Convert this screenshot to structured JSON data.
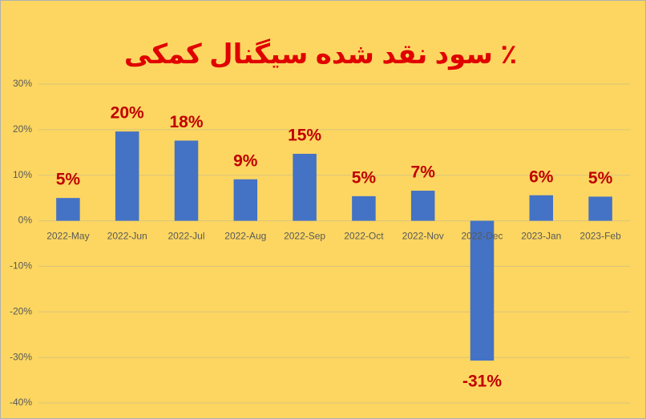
{
  "chart_data": {
    "type": "bar",
    "title": "٪ سود نقد شده سیگنال کمکی",
    "categories": [
      "2022-May",
      "2022-Jun",
      "2022-Jul",
      "2022-Aug",
      "2022-Sep",
      "2022-Oct",
      "2022-Nov",
      "2022-Dec",
      "2023-Jan",
      "2023-Feb"
    ],
    "values": [
      5,
      19.6,
      17.6,
      9.1,
      14.7,
      5.4,
      6.6,
      -30.7,
      5.6,
      5.3
    ],
    "value_labels": [
      "5%",
      "20%",
      "18%",
      "9%",
      "15%",
      "5%",
      "7%",
      "-31%",
      "6%",
      "5%"
    ],
    "color": "#4472c4",
    "ylim": [
      -40,
      30
    ],
    "yticks": [
      {
        "value": -40,
        "label": "-40%"
      },
      {
        "value": -30,
        "label": "-30%"
      },
      {
        "value": -20,
        "label": "-20%"
      },
      {
        "value": -10,
        "label": "-10%"
      },
      {
        "value": 0,
        "label": "0%"
      },
      {
        "value": 10,
        "label": "10%"
      },
      {
        "value": 20,
        "label": "20%"
      },
      {
        "value": 30,
        "label": "30%"
      }
    ],
    "grid": true
  }
}
